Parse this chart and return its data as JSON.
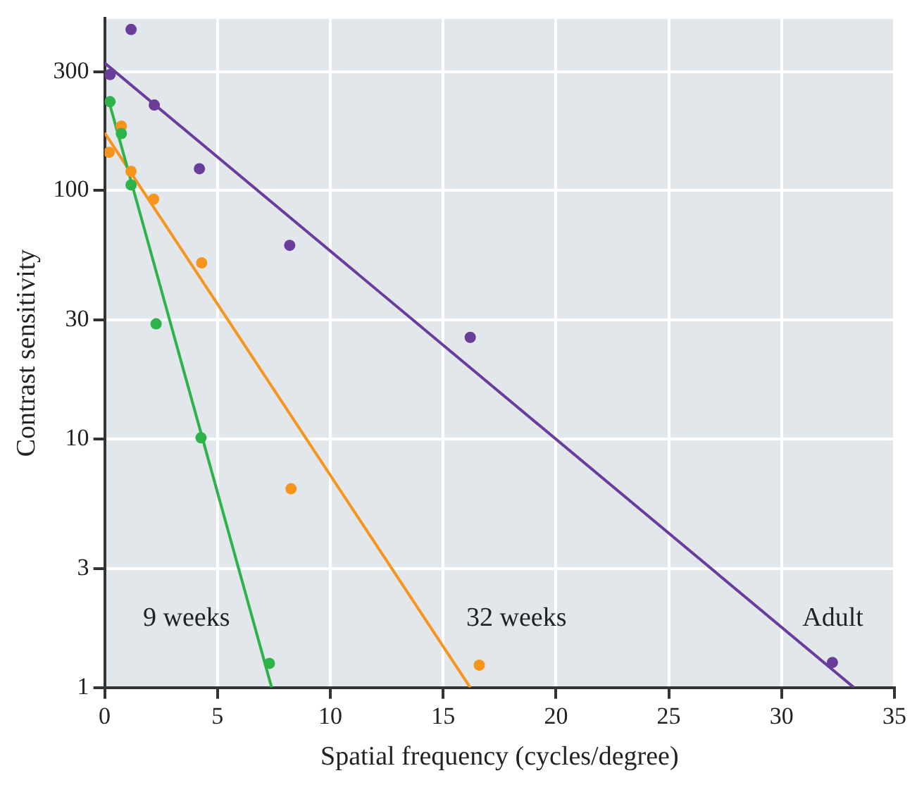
{
  "chart_data": {
    "type": "scatter",
    "xlabel": "Spatial frequency (cycles/degree)",
    "ylabel": "Contrast sensitivity",
    "xlim": [
      0,
      35
    ],
    "xticks": [
      0,
      5,
      10,
      15,
      20,
      25,
      30,
      35
    ],
    "ylim": [
      1,
      490
    ],
    "yticks": [
      1,
      3,
      10,
      30,
      100,
      300
    ],
    "log": "y",
    "grid": true,
    "legend": false,
    "marker": "circle",
    "series": [
      {
        "name": "9 weeks",
        "color": "#2db34a",
        "x": [
          0.24,
          0.74,
          1.17,
          2.28,
          4.27,
          7.3
        ],
        "values": [
          227,
          169,
          105,
          29,
          10.1,
          1.25
        ]
      },
      {
        "name": "32 weeks",
        "color": "#f7941d",
        "x": [
          0.2,
          0.74,
          1.17,
          2.17,
          4.3,
          8.26,
          16.6
        ],
        "values": [
          142,
          181,
          119,
          92,
          51,
          6.3,
          1.23
        ]
      },
      {
        "name": "Adult",
        "color": "#6a3d9a",
        "x": [
          0.24,
          1.17,
          2.2,
          4.2,
          8.2,
          16.2,
          32.25
        ],
        "values": [
          292,
          443,
          220,
          122,
          60,
          25.6,
          1.26
        ]
      },
      {
        "type": "line",
        "color": "#2db34a",
        "x": [
          0.2,
          7.4
        ],
        "values": [
          226,
          1
        ],
        "marker": "none"
      },
      {
        "type": "line",
        "color": "#f7941d",
        "x": [
          0,
          16.2
        ],
        "values": [
          170,
          1
        ],
        "marker": "none"
      },
      {
        "type": "line",
        "color": "#6a3d9a",
        "x": [
          0,
          33.2
        ],
        "values": [
          325,
          1
        ],
        "marker": "none"
      }
    ]
  }
}
